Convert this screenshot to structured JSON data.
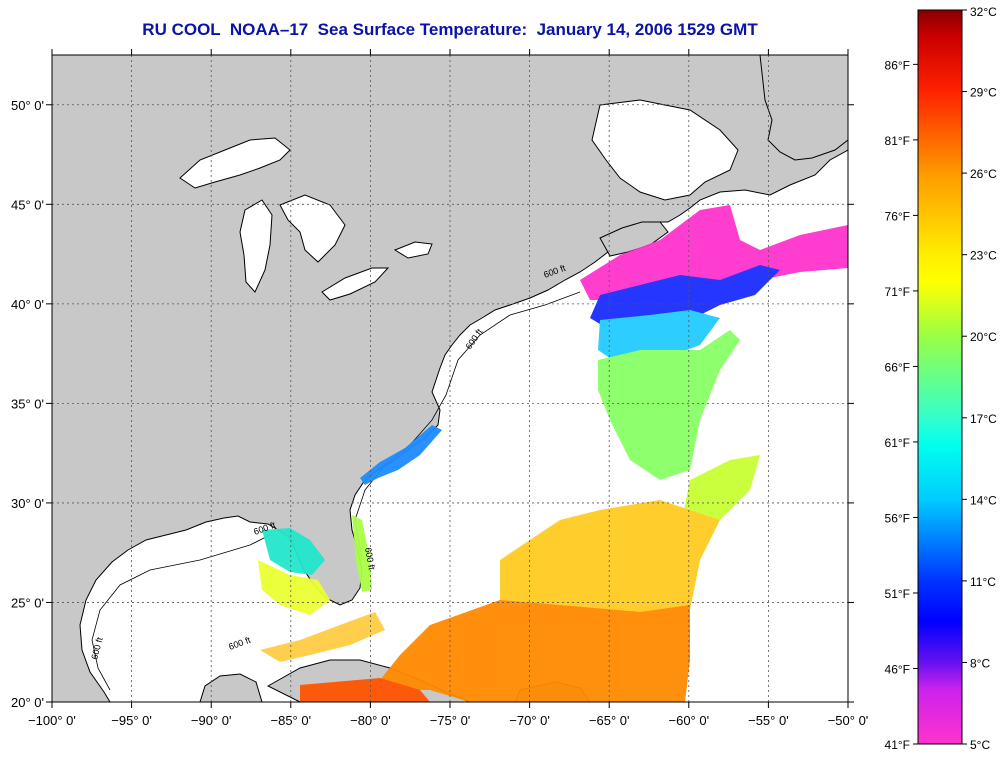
{
  "title": "RU COOL  NOAA–17  Sea Surface Temperature:  January 14, 2006 1529 GMT",
  "map": {
    "lon_range": [
      -100,
      -50
    ],
    "lat_range": [
      20,
      52.5
    ],
    "lon_ticks": [
      {
        "value": -100,
        "label": "−100° 0'"
      },
      {
        "value": -95,
        "label": "−95° 0'"
      },
      {
        "value": -90,
        "label": "−90° 0'"
      },
      {
        "value": -85,
        "label": "−85° 0'"
      },
      {
        "value": -80,
        "label": "−80° 0'"
      },
      {
        "value": -75,
        "label": "−75° 0'"
      },
      {
        "value": -70,
        "label": "−70° 0'"
      },
      {
        "value": -65,
        "label": "−65° 0'"
      },
      {
        "value": -60,
        "label": "−60° 0'"
      },
      {
        "value": -55,
        "label": "−55° 0'"
      },
      {
        "value": -50,
        "label": "−50° 0'"
      }
    ],
    "lat_ticks": [
      {
        "value": 50,
        "label": "50° 0'"
      },
      {
        "value": 45,
        "label": "45° 0'"
      },
      {
        "value": 40,
        "label": "40° 0'"
      },
      {
        "value": 35,
        "label": "35° 0'"
      },
      {
        "value": 30,
        "label": "30° 0'"
      },
      {
        "value": 25,
        "label": "25° 0'"
      },
      {
        "value": 20,
        "label": "20° 0'"
      }
    ],
    "grid": true,
    "contour_label": "600 ft",
    "colors": {
      "land": "#c8c8c8",
      "ocean": "#ffffff",
      "coast": "#000000",
      "grid": "#555555"
    }
  },
  "colorbar": {
    "range_c": [
      5,
      32
    ],
    "celsius_labels": [
      {
        "value": 32,
        "label": "32°C"
      },
      {
        "value": 29,
        "label": "29°C"
      },
      {
        "value": 26,
        "label": "26°C"
      },
      {
        "value": 23,
        "label": "23°C"
      },
      {
        "value": 20,
        "label": "20°C"
      },
      {
        "value": 17,
        "label": "17°C"
      },
      {
        "value": 14,
        "label": "14°C"
      },
      {
        "value": 11,
        "label": "11°C"
      },
      {
        "value": 8,
        "label": "8°C"
      },
      {
        "value": 5,
        "label": "5°C"
      }
    ],
    "fahrenheit_labels": [
      {
        "value": 86,
        "label": "86°F"
      },
      {
        "value": 81,
        "label": "81°F"
      },
      {
        "value": 76,
        "label": "76°F"
      },
      {
        "value": 71,
        "label": "71°F"
      },
      {
        "value": 66,
        "label": "66°F"
      },
      {
        "value": 61,
        "label": "61°F"
      },
      {
        "value": 56,
        "label": "56°F"
      },
      {
        "value": 51,
        "label": "51°F"
      },
      {
        "value": 46,
        "label": "46°F"
      },
      {
        "value": 41,
        "label": "41°F"
      }
    ],
    "gradient_stops": [
      {
        "t_c": 5,
        "color": "#ff33cc"
      },
      {
        "t_c": 7,
        "color": "#cc22ee"
      },
      {
        "t_c": 8,
        "color": "#6611ee"
      },
      {
        "t_c": 9.5,
        "color": "#0000ff"
      },
      {
        "t_c": 11,
        "color": "#0033ff"
      },
      {
        "t_c": 14,
        "color": "#00ccff"
      },
      {
        "t_c": 16,
        "color": "#00ffee"
      },
      {
        "t_c": 17,
        "color": "#33ffcc"
      },
      {
        "t_c": 20,
        "color": "#99ff44"
      },
      {
        "t_c": 22,
        "color": "#ffff00"
      },
      {
        "t_c": 23,
        "color": "#ffee00"
      },
      {
        "t_c": 26,
        "color": "#ff9900"
      },
      {
        "t_c": 29,
        "color": "#ff2200"
      },
      {
        "t_c": 31,
        "color": "#cc0000"
      },
      {
        "t_c": 32,
        "color": "#880000"
      }
    ]
  }
}
